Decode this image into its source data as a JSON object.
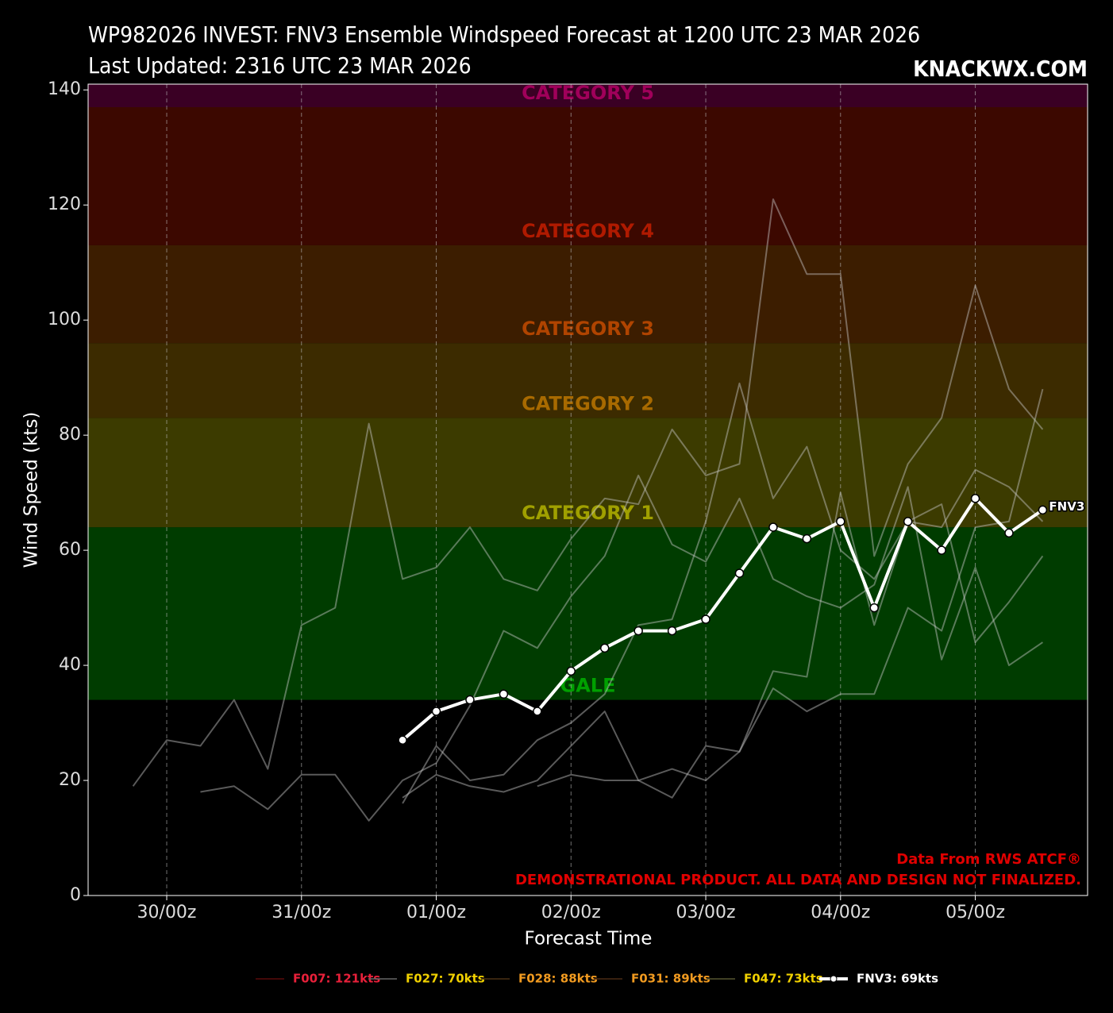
{
  "chart_data": {
    "type": "line",
    "title": "WP982026 INVEST: FNV3 Ensemble Windspeed Forecast at 1200 UTC 23 MAR 2026",
    "subtitle": "Last Updated: 2316 UTC 23 MAR 2026",
    "brand": "KNACKWX.COM",
    "x_label": "Forecast Time",
    "y_label": "Wind Speed (kts)",
    "notes": [
      "Data From RWS ATCF®",
      "DEMONSTRATIONAL PRODUCT. ALL DATA AND DESIGN NOT FINALIZED."
    ],
    "end_label": "FNV3",
    "xlim": [
      142,
      320
    ],
    "ylim": [
      0,
      141
    ],
    "xticks": [
      {
        "value": 156,
        "label": "30/00z"
      },
      {
        "value": 180,
        "label": "31/00z"
      },
      {
        "value": 204,
        "label": "01/00z"
      },
      {
        "value": 228,
        "label": "02/00z"
      },
      {
        "value": 252,
        "label": "03/00z"
      },
      {
        "value": 276,
        "label": "04/00z"
      },
      {
        "value": 300,
        "label": "05/00z"
      }
    ],
    "yticks": [
      0,
      20,
      40,
      60,
      80,
      100,
      120,
      140
    ],
    "grid": "x",
    "bands": [
      {
        "name": "GALE",
        "from": 34,
        "color": "#003c00",
        "label_color": "#00a000"
      },
      {
        "name": "CATEGORY 1",
        "from": 64,
        "color": "#3c3b00",
        "label_color": "#a0a000"
      },
      {
        "name": "CATEGORY 2",
        "from": 83,
        "color": "#3c2b00",
        "label_color": "#a86a00"
      },
      {
        "name": "CATEGORY 3",
        "from": 96,
        "color": "#3c1d00",
        "label_color": "#b04400"
      },
      {
        "name": "CATEGORY 4",
        "from": 113,
        "color": "#3c0800",
        "label_color": "#b01a00"
      },
      {
        "name": "CATEGORY 5",
        "from": 137,
        "color": "#3a0024",
        "label_color": "#a0005a"
      }
    ],
    "x": [
      150,
      156,
      162,
      168,
      174,
      180,
      186,
      192,
      198,
      204,
      210,
      216,
      222,
      228,
      234,
      240,
      246,
      252,
      258,
      264,
      270,
      276,
      282,
      288,
      294,
      300,
      306,
      312
    ],
    "series": [
      {
        "name": "F007: 121kts",
        "color": "rgba(200,200,200,0.45)",
        "legend_color": "#5a0a0a",
        "label_color": "#e8203a",
        "values": [
          19,
          27,
          26,
          34,
          22,
          47,
          50,
          82,
          55,
          57,
          64,
          55,
          53,
          62,
          69,
          68,
          81,
          73,
          75,
          121,
          108,
          108,
          59,
          75,
          83,
          106,
          88,
          81
        ]
      },
      {
        "name": "F027: 70kts",
        "color": "rgba(200,200,200,0.45)",
        "legend_color": "#666666",
        "label_color": "#f0d000",
        "values": [
          null,
          null,
          null,
          null,
          null,
          null,
          null,
          null,
          null,
          null,
          null,
          null,
          19,
          21,
          20,
          20,
          17,
          26,
          25,
          39,
          38,
          70,
          47,
          65,
          68,
          44,
          51,
          59
        ]
      },
      {
        "name": "F028: 88kts",
        "color": "rgba(200,200,200,0.45)",
        "legend_color": "#4a3014",
        "label_color": "#f09a20",
        "values": [
          null,
          null,
          null,
          null,
          null,
          null,
          null,
          null,
          17,
          21,
          19,
          18,
          20,
          26,
          32,
          20,
          22,
          20,
          25,
          36,
          32,
          35,
          35,
          50,
          46,
          64,
          65,
          88
        ]
      },
      {
        "name": "F031: 89kts",
        "color": "rgba(200,200,200,0.45)",
        "legend_color": "#4a2a14",
        "label_color": "#f09a20",
        "values": [
          null,
          null,
          null,
          null,
          null,
          null,
          null,
          null,
          16,
          26,
          20,
          21,
          27,
          30,
          35,
          47,
          48,
          65,
          89,
          69,
          78,
          60,
          55,
          65,
          64,
          74,
          71,
          65
        ]
      },
      {
        "name": "F047: 73kts",
        "color": "rgba(200,200,200,0.45)",
        "legend_color": "#555530",
        "label_color": "#f0d000",
        "values": [
          null,
          null,
          18,
          19,
          15,
          21,
          21,
          13,
          20,
          23,
          33,
          46,
          43,
          52,
          59,
          73,
          61,
          58,
          69,
          55,
          52,
          50,
          54,
          71,
          41,
          57,
          40,
          44
        ]
      },
      {
        "name": "FNV3: 69kts",
        "color": "#ffffff",
        "legend_color": "#ffffff",
        "label_color": "#ffffff",
        "markers": true,
        "values": [
          null,
          null,
          null,
          null,
          null,
          null,
          null,
          null,
          27,
          32,
          34,
          35,
          32,
          39,
          43,
          46,
          46,
          48,
          56,
          64,
          62,
          65,
          50,
          65,
          60,
          69,
          63,
          67
        ]
      }
    ]
  }
}
